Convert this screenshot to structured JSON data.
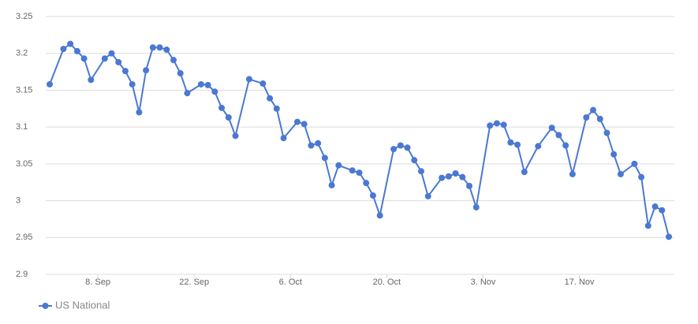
{
  "chart_data": {
    "type": "line",
    "x": [
      "09-01",
      "09-03",
      "09-04",
      "09-05",
      "09-06",
      "09-07",
      "09-09",
      "09-10",
      "09-11",
      "09-12",
      "09-13",
      "09-14",
      "09-15",
      "09-16",
      "09-17",
      "09-18",
      "09-19",
      "09-20",
      "09-21",
      "09-23",
      "09-24",
      "09-25",
      "09-26",
      "09-27",
      "09-28",
      "09-30",
      "10-02",
      "10-03",
      "10-04",
      "10-05",
      "10-07",
      "10-08",
      "10-09",
      "10-10",
      "10-11",
      "10-12",
      "10-13",
      "10-15",
      "10-16",
      "10-17",
      "10-18",
      "10-19",
      "10-21",
      "10-22",
      "10-23",
      "10-24",
      "10-25",
      "10-26",
      "10-28",
      "10-29",
      "10-30",
      "10-31",
      "11-01",
      "11-02",
      "11-04",
      "11-05",
      "11-06",
      "11-07",
      "11-08",
      "11-09",
      "11-11",
      "11-13",
      "11-14",
      "11-15",
      "11-16",
      "11-18",
      "11-19",
      "11-20",
      "11-21",
      "11-22",
      "11-23",
      "11-25",
      "11-26",
      "11-27",
      "11-28",
      "11-29",
      "11-30"
    ],
    "series": [
      {
        "name": "US National",
        "color": "#4a78d2",
        "values": [
          3.158,
          3.206,
          3.213,
          3.203,
          3.193,
          3.164,
          3.193,
          3.2,
          3.188,
          3.176,
          3.158,
          3.12,
          3.177,
          3.208,
          3.208,
          3.205,
          3.191,
          3.173,
          3.146,
          3.158,
          3.157,
          3.148,
          3.126,
          3.113,
          3.088,
          3.165,
          3.159,
          3.139,
          3.125,
          3.085,
          3.107,
          3.104,
          3.075,
          3.078,
          3.058,
          3.021,
          3.048,
          3.041,
          3.038,
          3.024,
          3.007,
          2.98,
          3.07,
          3.075,
          3.072,
          3.055,
          3.04,
          3.006,
          3.031,
          3.033,
          3.037,
          3.032,
          3.02,
          2.991,
          3.102,
          3.105,
          3.103,
          3.079,
          3.076,
          3.039,
          3.074,
          3.099,
          3.089,
          3.075,
          3.036,
          3.113,
          3.123,
          3.111,
          3.092,
          3.063,
          3.036,
          3.05,
          3.032,
          2.966,
          2.992,
          2.987,
          2.951
        ]
      }
    ],
    "xlim": [
      "09-01",
      "11-30"
    ],
    "xticks": [
      {
        "value": "09-08",
        "label": "8. Sep"
      },
      {
        "value": "09-22",
        "label": "22. Sep"
      },
      {
        "value": "10-06",
        "label": "6. Oct"
      },
      {
        "value": "10-20",
        "label": "20. Oct"
      },
      {
        "value": "11-03",
        "label": "3. Nov"
      },
      {
        "value": "11-17",
        "label": "17. Nov"
      }
    ],
    "ylim": [
      2.9,
      3.25
    ],
    "yticks": [
      2.9,
      2.95,
      3,
      3.05,
      3.1,
      3.15,
      3.2,
      3.25
    ],
    "grid": true,
    "legend": "bottom-left"
  }
}
